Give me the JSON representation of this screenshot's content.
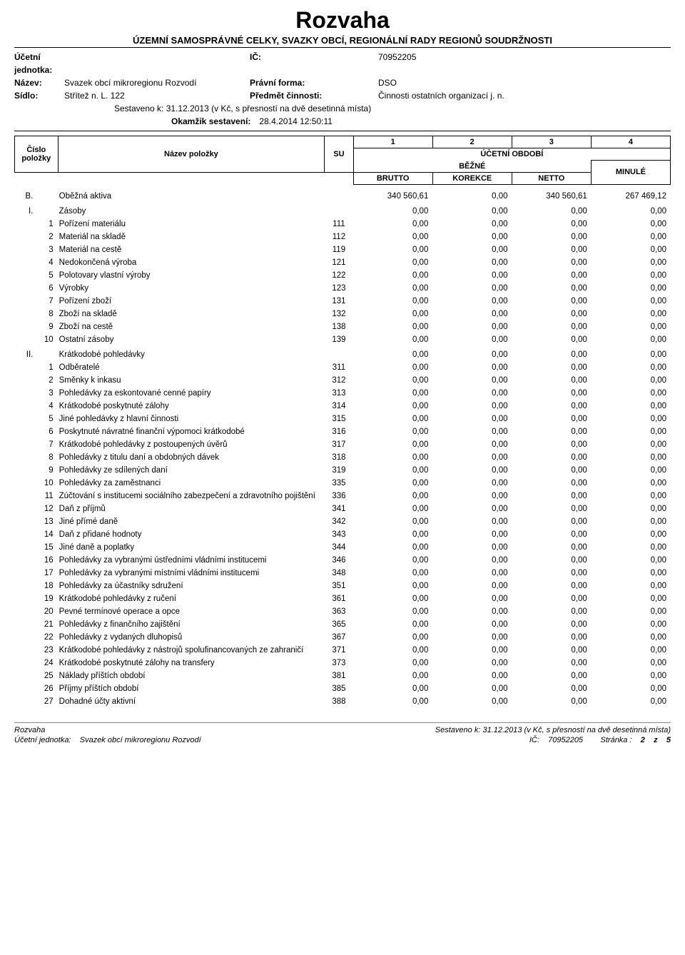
{
  "document": {
    "title": "Rozvaha",
    "subtitle": "ÚZEMNÍ SAMOSPRÁVNÉ CELKY, SVAZKY OBCÍ, REGIONÁLNÍ RADY REGIONŮ SOUDRŽNOSTI"
  },
  "header": {
    "unit_label": "Účetní jednotka:",
    "name_label": "Název:",
    "name_value": "Svazek obcí mikroregionu Rozvodí",
    "sidlo_label": "Sídlo:",
    "sidlo_value": "Střítež n. L. 122",
    "ic_label": "IČ:",
    "ic_value": "70952205",
    "form_label": "Právní forma:",
    "form_value": "DSO",
    "activity_label": "Předmět činnosti:",
    "activity_value": "Činnosti ostatních organizací j. n.",
    "sestaveno": "Sestaveno k: 31.12.2013 (v Kč, s přesností na dvě desetinná místa)",
    "okamzik_label": "Okamžik sestavení:",
    "okamzik_value": "28.4.2014 12:50:11"
  },
  "table_header": {
    "c1": "1",
    "c2": "2",
    "c3": "3",
    "c4": "4",
    "cislo": "Číslo položky",
    "nazev": "Název položky",
    "su": "SU",
    "obdobi": "ÚČETNÍ OBDOBÍ",
    "bezne": "BĚŽNÉ",
    "minule": "MINULÉ",
    "brutto": "BRUTTO",
    "korekce": "KOREKCE",
    "netto": "NETTO"
  },
  "sections": [
    {
      "num": "B.",
      "name": "Oběžná aktiva",
      "su": "",
      "v1": "340 560,61",
      "v2": "0,00",
      "v3": "340 560,61",
      "v4": "267 469,12"
    },
    {
      "num": "I.",
      "name": "Zásoby",
      "su": "",
      "v1": "0,00",
      "v2": "0,00",
      "v3": "0,00",
      "v4": "0,00",
      "rows": [
        {
          "sub": "1",
          "name": "Pořízení materiálu",
          "su": "111",
          "v1": "0,00",
          "v2": "0,00",
          "v3": "0,00",
          "v4": "0,00"
        },
        {
          "sub": "2",
          "name": "Materiál na skladě",
          "su": "112",
          "v1": "0,00",
          "v2": "0,00",
          "v3": "0,00",
          "v4": "0,00"
        },
        {
          "sub": "3",
          "name": "Materiál na cestě",
          "su": "119",
          "v1": "0,00",
          "v2": "0,00",
          "v3": "0,00",
          "v4": "0,00"
        },
        {
          "sub": "4",
          "name": "Nedokončená výroba",
          "su": "121",
          "v1": "0,00",
          "v2": "0,00",
          "v3": "0,00",
          "v4": "0,00"
        },
        {
          "sub": "5",
          "name": "Polotovary vlastní výroby",
          "su": "122",
          "v1": "0,00",
          "v2": "0,00",
          "v3": "0,00",
          "v4": "0,00"
        },
        {
          "sub": "6",
          "name": "Výrobky",
          "su": "123",
          "v1": "0,00",
          "v2": "0,00",
          "v3": "0,00",
          "v4": "0,00"
        },
        {
          "sub": "7",
          "name": "Pořízení zboží",
          "su": "131",
          "v1": "0,00",
          "v2": "0,00",
          "v3": "0,00",
          "v4": "0,00"
        },
        {
          "sub": "8",
          "name": "Zboží na skladě",
          "su": "132",
          "v1": "0,00",
          "v2": "0,00",
          "v3": "0,00",
          "v4": "0,00"
        },
        {
          "sub": "9",
          "name": "Zboží na cestě",
          "su": "138",
          "v1": "0,00",
          "v2": "0,00",
          "v3": "0,00",
          "v4": "0,00"
        },
        {
          "sub": "10",
          "name": "Ostatní zásoby",
          "su": "139",
          "v1": "0,00",
          "v2": "0,00",
          "v3": "0,00",
          "v4": "0,00"
        }
      ]
    },
    {
      "num": "II.",
      "name": "Krátkodobé pohledávky",
      "su": "",
      "v1": "0,00",
      "v2": "0,00",
      "v3": "0,00",
      "v4": "0,00",
      "rows": [
        {
          "sub": "1",
          "name": "Odběratelé",
          "su": "311",
          "v1": "0,00",
          "v2": "0,00",
          "v3": "0,00",
          "v4": "0,00"
        },
        {
          "sub": "2",
          "name": "Směnky k inkasu",
          "su": "312",
          "v1": "0,00",
          "v2": "0,00",
          "v3": "0,00",
          "v4": "0,00"
        },
        {
          "sub": "3",
          "name": "Pohledávky za eskontované cenné papíry",
          "su": "313",
          "v1": "0,00",
          "v2": "0,00",
          "v3": "0,00",
          "v4": "0,00"
        },
        {
          "sub": "4",
          "name": "Krátkodobé poskytnuté zálohy",
          "su": "314",
          "v1": "0,00",
          "v2": "0,00",
          "v3": "0,00",
          "v4": "0,00"
        },
        {
          "sub": "5",
          "name": "Jiné pohledávky z hlavní činnosti",
          "su": "315",
          "v1": "0,00",
          "v2": "0,00",
          "v3": "0,00",
          "v4": "0,00"
        },
        {
          "sub": "6",
          "name": "Poskytnuté návratné finanční výpomoci krátkodobé",
          "su": "316",
          "v1": "0,00",
          "v2": "0,00",
          "v3": "0,00",
          "v4": "0,00"
        },
        {
          "sub": "7",
          "name": "Krátkodobé pohledávky z postoupených úvěrů",
          "su": "317",
          "v1": "0,00",
          "v2": "0,00",
          "v3": "0,00",
          "v4": "0,00"
        },
        {
          "sub": "8",
          "name": "Pohledávky z titulu daní a obdobných dávek",
          "su": "318",
          "v1": "0,00",
          "v2": "0,00",
          "v3": "0,00",
          "v4": "0,00"
        },
        {
          "sub": "9",
          "name": "Pohledávky ze sdílených daní",
          "su": "319",
          "v1": "0,00",
          "v2": "0,00",
          "v3": "0,00",
          "v4": "0,00"
        },
        {
          "sub": "10",
          "name": "Pohledávky za zaměstnanci",
          "su": "335",
          "v1": "0,00",
          "v2": "0,00",
          "v3": "0,00",
          "v4": "0,00"
        },
        {
          "sub": "11",
          "name": "Zúčtování s institucemi sociálního zabezpečení a zdravotního pojištění",
          "su": "336",
          "v1": "0,00",
          "v2": "0,00",
          "v3": "0,00",
          "v4": "0,00"
        },
        {
          "sub": "12",
          "name": "Daň z příjmů",
          "su": "341",
          "v1": "0,00",
          "v2": "0,00",
          "v3": "0,00",
          "v4": "0,00"
        },
        {
          "sub": "13",
          "name": "Jiné přímé daně",
          "su": "342",
          "v1": "0,00",
          "v2": "0,00",
          "v3": "0,00",
          "v4": "0,00"
        },
        {
          "sub": "14",
          "name": "Daň z přidané hodnoty",
          "su": "343",
          "v1": "0,00",
          "v2": "0,00",
          "v3": "0,00",
          "v4": "0,00"
        },
        {
          "sub": "15",
          "name": "Jiné daně a poplatky",
          "su": "344",
          "v1": "0,00",
          "v2": "0,00",
          "v3": "0,00",
          "v4": "0,00"
        },
        {
          "sub": "16",
          "name": "Pohledávky za vybranými ústředními vládními institucemi",
          "su": "346",
          "v1": "0,00",
          "v2": "0,00",
          "v3": "0,00",
          "v4": "0,00"
        },
        {
          "sub": "17",
          "name": "Pohledávky za vybranými místními vládními institucemi",
          "su": "348",
          "v1": "0,00",
          "v2": "0,00",
          "v3": "0,00",
          "v4": "0,00"
        },
        {
          "sub": "18",
          "name": "Pohledávky za účastníky sdružení",
          "su": "351",
          "v1": "0,00",
          "v2": "0,00",
          "v3": "0,00",
          "v4": "0,00"
        },
        {
          "sub": "19",
          "name": "Krátkodobé pohledávky z ručení",
          "su": "361",
          "v1": "0,00",
          "v2": "0,00",
          "v3": "0,00",
          "v4": "0,00"
        },
        {
          "sub": "20",
          "name": "Pevné termínové operace a opce",
          "su": "363",
          "v1": "0,00",
          "v2": "0,00",
          "v3": "0,00",
          "v4": "0,00"
        },
        {
          "sub": "21",
          "name": "Pohledávky z finančního zajištění",
          "su": "365",
          "v1": "0,00",
          "v2": "0,00",
          "v3": "0,00",
          "v4": "0,00"
        },
        {
          "sub": "22",
          "name": "Pohledávky z vydaných dluhopisů",
          "su": "367",
          "v1": "0,00",
          "v2": "0,00",
          "v3": "0,00",
          "v4": "0,00"
        },
        {
          "sub": "23",
          "name": "Krátkodobé pohledávky z nástrojů spolufinancovaných ze zahraničí",
          "su": "371",
          "v1": "0,00",
          "v2": "0,00",
          "v3": "0,00",
          "v4": "0,00"
        },
        {
          "sub": "24",
          "name": "Krátkodobé poskytnuté zálohy na transfery",
          "su": "373",
          "v1": "0,00",
          "v2": "0,00",
          "v3": "0,00",
          "v4": "0,00"
        },
        {
          "sub": "25",
          "name": "Náklady příštích období",
          "su": "381",
          "v1": "0,00",
          "v2": "0,00",
          "v3": "0,00",
          "v4": "0,00"
        },
        {
          "sub": "26",
          "name": "Příjmy příštích období",
          "su": "385",
          "v1": "0,00",
          "v2": "0,00",
          "v3": "0,00",
          "v4": "0,00"
        },
        {
          "sub": "27",
          "name": "Dohadné účty aktivní",
          "su": "388",
          "v1": "0,00",
          "v2": "0,00",
          "v3": "0,00",
          "v4": "0,00"
        }
      ]
    }
  ],
  "footer": {
    "left1": "Rozvaha",
    "right1": "Sestaveno k: 31.12.2013 (v Kč, s přesností na dvě desetinná místa)",
    "left2_label": "Účetní jednotka:",
    "left2_value": "Svazek obcí mikroregionu Rozvodí",
    "ic_label": "IČ:",
    "ic_value": "70952205",
    "page_label": "Stránka :",
    "page_value": "2",
    "page_of": "z",
    "page_total": "5"
  }
}
